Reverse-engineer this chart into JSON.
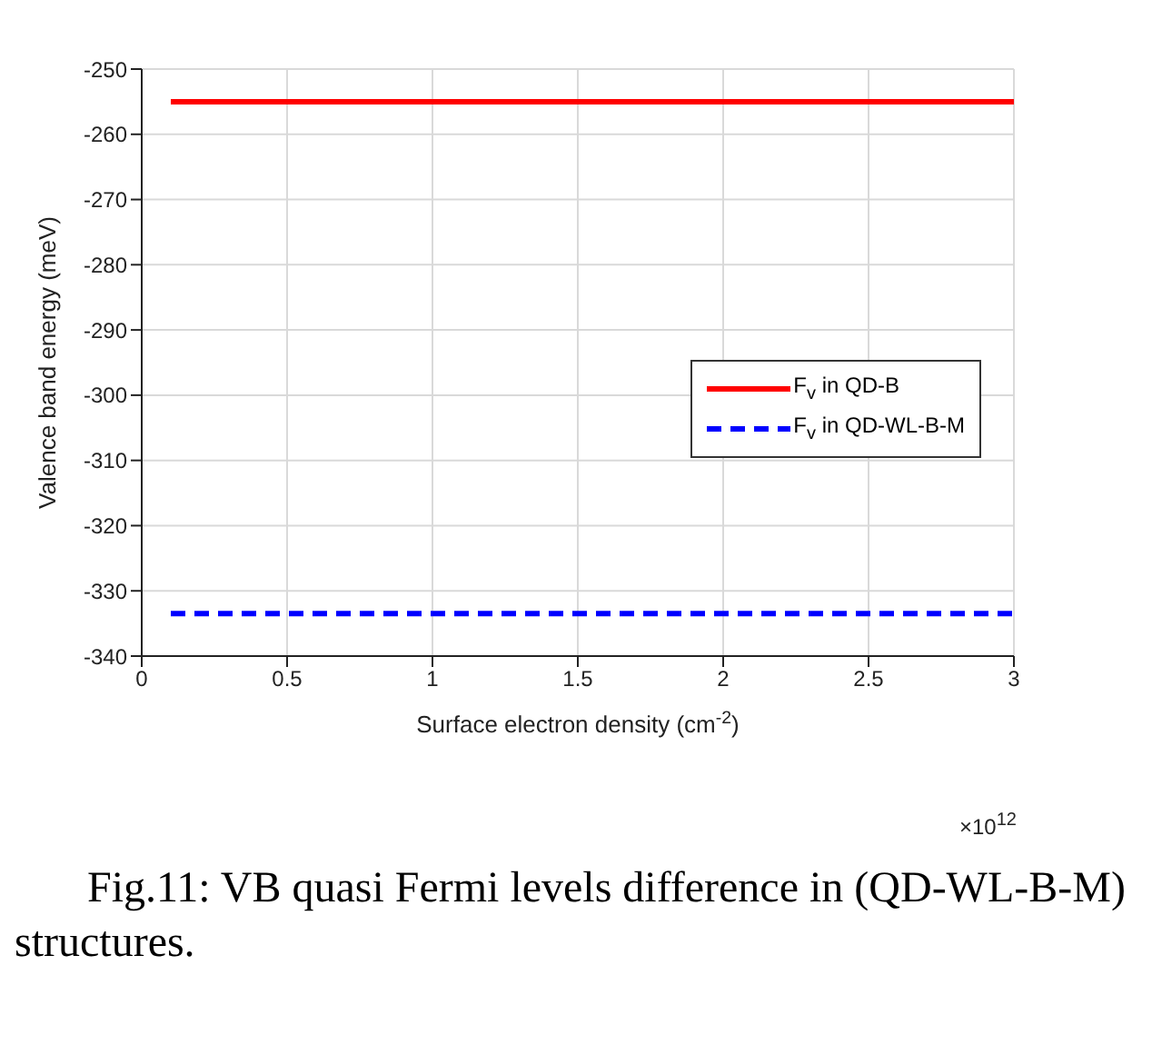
{
  "chart_data": {
    "type": "line",
    "xlabel": "Surface electron density (cm$^{-2}$)",
    "ylabel": "Valence band energy (meV)",
    "x": [
      0.1,
      3
    ],
    "series": [
      {
        "name": "F$_{v}$ in QD-B",
        "color": "#ff0000",
        "values": [
          -255,
          -255
        ],
        "line_style": "solid"
      },
      {
        "name": "F$_{v}$ in QD-WL-B-M",
        "color": "#0000ff",
        "values": [
          -333.5,
          -333.5
        ],
        "line_style": "dashed"
      }
    ],
    "xlim": [
      0,
      3
    ],
    "xticks": [
      0,
      0.5,
      1,
      1.5,
      2,
      2.5,
      3
    ],
    "ylim": [
      -340,
      -250
    ],
    "yticks": [
      -340,
      -330,
      -320,
      -310,
      -300,
      -290,
      -280,
      -270,
      -260,
      -250
    ],
    "grid": true,
    "legend": "right",
    "marker": "none",
    "annotations": [
      "×10$^{12}$",
      "Fig.11: VB quasi Fermi levels difference in (QD-WL-B-M) structures."
    ]
  }
}
